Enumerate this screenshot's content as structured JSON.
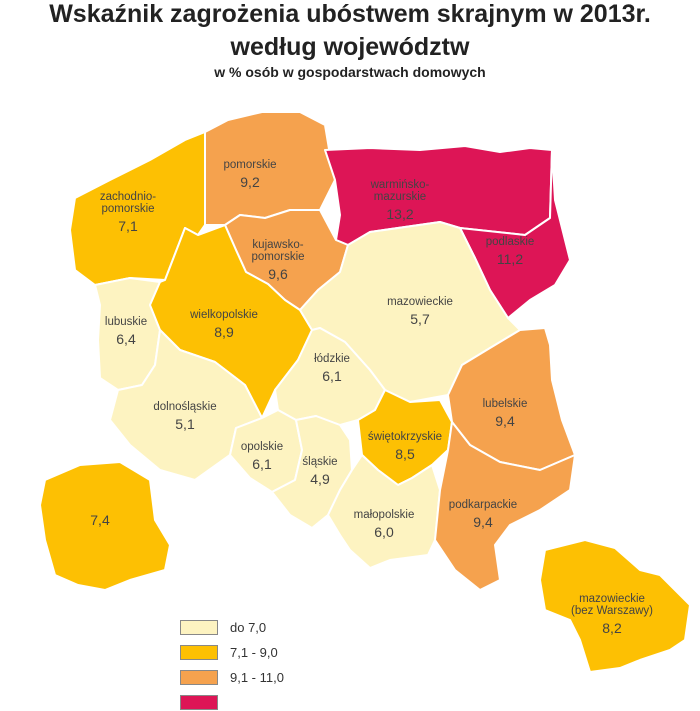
{
  "title_line1": "Wskaźnik zagrożenia ubóstwem skrajnym w 2013r.",
  "title_line2": "według województw",
  "subtitle": "w % osób w gospodarstwach domowych",
  "colors": {
    "do_7": "#fdf3c1",
    "7_9": "#fdc003",
    "9_11": "#f5a24e",
    "above_11": "#dd1556"
  },
  "regions": [
    {
      "key": "zachodniopomorskie",
      "name1": "zachodnio-",
      "name2": "pomorskie",
      "value": "7,1",
      "cat": "7_9"
    },
    {
      "key": "pomorskie",
      "name1": "pomorskie",
      "name2": "",
      "value": "9,2",
      "cat": "9_11"
    },
    {
      "key": "warminsko",
      "name1": "warmińsko-",
      "name2": "mazurskie",
      "value": "13,2",
      "cat": "above_11"
    },
    {
      "key": "podlaskie",
      "name1": "podlaskie",
      "name2": "",
      "value": "11,2",
      "cat": "above_11"
    },
    {
      "key": "kujawsko",
      "name1": "kujawsko-",
      "name2": "pomorskie",
      "value": "9,6",
      "cat": "9_11"
    },
    {
      "key": "lubuskie",
      "name1": "lubuskie",
      "name2": "",
      "value": "6,4",
      "cat": "do_7"
    },
    {
      "key": "wielkopolskie",
      "name1": "wielkopolskie",
      "name2": "",
      "value": "8,9",
      "cat": "7_9"
    },
    {
      "key": "mazowieckie",
      "name1": "mazowieckie",
      "name2": "",
      "value": "5,7",
      "cat": "do_7"
    },
    {
      "key": "lodzkie",
      "name1": "łódzkie",
      "name2": "",
      "value": "6,1",
      "cat": "do_7"
    },
    {
      "key": "lubelskie",
      "name1": "lubelskie",
      "name2": "",
      "value": "9,4",
      "cat": "9_11"
    },
    {
      "key": "dolnoslaskie",
      "name1": "dolnośląskie",
      "name2": "",
      "value": "5,1",
      "cat": "do_7"
    },
    {
      "key": "opolskie",
      "name1": "opolskie",
      "name2": "",
      "value": "6,1",
      "cat": "do_7"
    },
    {
      "key": "slaskie",
      "name1": "śląskie",
      "name2": "",
      "value": "4,9",
      "cat": "do_7"
    },
    {
      "key": "swietokrzyskie",
      "name1": "świętokrzyskie",
      "name2": "",
      "value": "8,5",
      "cat": "7_9"
    },
    {
      "key": "malopolskie",
      "name1": "małopolskie",
      "name2": "",
      "value": "6,0",
      "cat": "do_7"
    },
    {
      "key": "podkarpackie",
      "name1": "podkarpackie",
      "name2": "",
      "value": "9,4",
      "cat": "9_11"
    }
  ],
  "inset_poland": {
    "value": "7,4",
    "cat": "7_9"
  },
  "inset_mazowieckie": {
    "name1": "mazowieckie",
    "name2": "(bez Warszawy)",
    "value": "8,2",
    "cat": "7_9"
  },
  "legend": [
    {
      "label": "do 7,0",
      "cat": "do_7"
    },
    {
      "label": "7,1 - 9,0",
      "cat": "7_9"
    },
    {
      "label": "9,1 - 11,0",
      "cat": "9_11"
    },
    {
      "label": "",
      "cat": "above_11"
    }
  ]
}
